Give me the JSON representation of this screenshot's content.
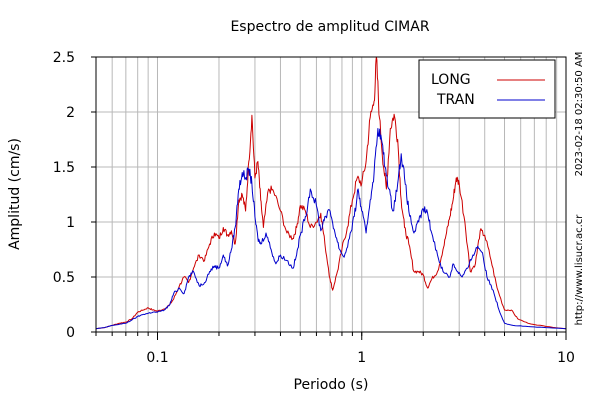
{
  "chart_data": {
    "type": "line",
    "title": "Espectro de amplitud CIMAR",
    "xlabel": "Periodo (s)",
    "ylabel": "Amplitud (cm/s)",
    "x_scale": "log",
    "xlim": [
      0.05,
      10
    ],
    "ylim": [
      0,
      2.5
    ],
    "x_ticks": [
      {
        "value": 0.1,
        "label": "0.1"
      },
      {
        "value": 1,
        "label": "1"
      },
      {
        "value": 10,
        "label": "10"
      }
    ],
    "y_ticks": [
      {
        "value": 0,
        "label": "0"
      },
      {
        "value": 0.5,
        "label": "0.5"
      },
      {
        "value": 1,
        "label": "1"
      },
      {
        "value": 1.5,
        "label": "1.5"
      },
      {
        "value": 2,
        "label": "2"
      },
      {
        "value": 2.5,
        "label": "2.5"
      }
    ],
    "grid": true,
    "legend_position": "top-right",
    "timestamp_label": "2023-02-18 02:30:50 AM",
    "url_label": "http://www.lisucr.ac.cr",
    "series": [
      {
        "name": "LONG",
        "color": "#cc0000",
        "points": [
          [
            0.05,
            0.03
          ],
          [
            0.055,
            0.04
          ],
          [
            0.06,
            0.06
          ],
          [
            0.065,
            0.08
          ],
          [
            0.07,
            0.09
          ],
          [
            0.075,
            0.12
          ],
          [
            0.08,
            0.18
          ],
          [
            0.085,
            0.2
          ],
          [
            0.09,
            0.22
          ],
          [
            0.095,
            0.2
          ],
          [
            0.1,
            0.19
          ],
          [
            0.108,
            0.21
          ],
          [
            0.115,
            0.25
          ],
          [
            0.12,
            0.3
          ],
          [
            0.128,
            0.42
          ],
          [
            0.135,
            0.5
          ],
          [
            0.142,
            0.45
          ],
          [
            0.15,
            0.58
          ],
          [
            0.16,
            0.7
          ],
          [
            0.17,
            0.65
          ],
          [
            0.18,
            0.8
          ],
          [
            0.19,
            0.9
          ],
          [
            0.2,
            0.85
          ],
          [
            0.21,
            0.95
          ],
          [
            0.22,
            0.88
          ],
          [
            0.23,
            0.92
          ],
          [
            0.24,
            0.8
          ],
          [
            0.25,
            1.2
          ],
          [
            0.26,
            1.25
          ],
          [
            0.27,
            1.1
          ],
          [
            0.28,
            1.55
          ],
          [
            0.29,
            1.97
          ],
          [
            0.3,
            1.4
          ],
          [
            0.31,
            1.55
          ],
          [
            0.32,
            1.2
          ],
          [
            0.33,
            0.95
          ],
          [
            0.35,
            1.3
          ],
          [
            0.37,
            1.28
          ],
          [
            0.4,
            1.1
          ],
          [
            0.43,
            0.9
          ],
          [
            0.46,
            0.85
          ],
          [
            0.48,
            0.95
          ],
          [
            0.5,
            1.15
          ],
          [
            0.53,
            1.1
          ],
          [
            0.56,
            0.95
          ],
          [
            0.6,
            1.0
          ],
          [
            0.63,
            1.08
          ],
          [
            0.66,
            0.8
          ],
          [
            0.7,
            0.48
          ],
          [
            0.72,
            0.38
          ],
          [
            0.76,
            0.55
          ],
          [
            0.8,
            0.75
          ],
          [
            0.85,
            0.95
          ],
          [
            0.9,
            1.2
          ],
          [
            0.95,
            1.4
          ],
          [
            1.0,
            1.35
          ],
          [
            1.05,
            1.55
          ],
          [
            1.1,
            1.95
          ],
          [
            1.15,
            2.1
          ],
          [
            1.18,
            2.5
          ],
          [
            1.22,
            1.95
          ],
          [
            1.28,
            1.5
          ],
          [
            1.32,
            1.3
          ],
          [
            1.38,
            1.85
          ],
          [
            1.44,
            1.98
          ],
          [
            1.5,
            1.75
          ],
          [
            1.56,
            1.2
          ],
          [
            1.62,
            0.95
          ],
          [
            1.7,
            0.8
          ],
          [
            1.8,
            0.55
          ],
          [
            1.9,
            0.55
          ],
          [
            2.0,
            0.52
          ],
          [
            2.1,
            0.4
          ],
          [
            2.2,
            0.48
          ],
          [
            2.35,
            0.55
          ],
          [
            2.5,
            0.75
          ],
          [
            2.6,
            0.9
          ],
          [
            2.7,
            1.05
          ],
          [
            2.8,
            1.2
          ],
          [
            2.9,
            1.4
          ],
          [
            3.0,
            1.35
          ],
          [
            3.2,
            1.0
          ],
          [
            3.4,
            0.55
          ],
          [
            3.6,
            0.62
          ],
          [
            3.8,
            0.92
          ],
          [
            4.0,
            0.88
          ],
          [
            4.3,
            0.65
          ],
          [
            4.6,
            0.4
          ],
          [
            5.0,
            0.2
          ],
          [
            5.4,
            0.2
          ],
          [
            5.8,
            0.12
          ],
          [
            6.5,
            0.08
          ],
          [
            8.0,
            0.05
          ],
          [
            10.0,
            0.03
          ]
        ]
      },
      {
        "name": "TRAN",
        "color": "#0000cc",
        "points": [
          [
            0.05,
            0.03
          ],
          [
            0.055,
            0.04
          ],
          [
            0.06,
            0.06
          ],
          [
            0.065,
            0.07
          ],
          [
            0.07,
            0.08
          ],
          [
            0.075,
            0.11
          ],
          [
            0.08,
            0.14
          ],
          [
            0.085,
            0.16
          ],
          [
            0.09,
            0.17
          ],
          [
            0.095,
            0.18
          ],
          [
            0.1,
            0.18
          ],
          [
            0.108,
            0.2
          ],
          [
            0.115,
            0.25
          ],
          [
            0.12,
            0.35
          ],
          [
            0.128,
            0.4
          ],
          [
            0.135,
            0.35
          ],
          [
            0.142,
            0.5
          ],
          [
            0.15,
            0.55
          ],
          [
            0.16,
            0.42
          ],
          [
            0.17,
            0.45
          ],
          [
            0.18,
            0.55
          ],
          [
            0.19,
            0.6
          ],
          [
            0.2,
            0.58
          ],
          [
            0.21,
            0.7
          ],
          [
            0.22,
            0.6
          ],
          [
            0.23,
            0.75
          ],
          [
            0.24,
            0.95
          ],
          [
            0.25,
            1.3
          ],
          [
            0.26,
            1.45
          ],
          [
            0.27,
            1.4
          ],
          [
            0.28,
            1.48
          ],
          [
            0.29,
            1.35
          ],
          [
            0.3,
            1.05
          ],
          [
            0.31,
            0.85
          ],
          [
            0.32,
            0.8
          ],
          [
            0.34,
            0.9
          ],
          [
            0.36,
            0.75
          ],
          [
            0.38,
            0.62
          ],
          [
            0.4,
            0.7
          ],
          [
            0.43,
            0.65
          ],
          [
            0.46,
            0.58
          ],
          [
            0.48,
            0.7
          ],
          [
            0.5,
            0.88
          ],
          [
            0.53,
            1.05
          ],
          [
            0.56,
            1.3
          ],
          [
            0.6,
            1.15
          ],
          [
            0.63,
            0.92
          ],
          [
            0.66,
            1.05
          ],
          [
            0.7,
            1.1
          ],
          [
            0.74,
            0.9
          ],
          [
            0.78,
            0.75
          ],
          [
            0.82,
            0.68
          ],
          [
            0.87,
            0.85
          ],
          [
            0.92,
            1.05
          ],
          [
            0.96,
            1.3
          ],
          [
            1.0,
            1.1
          ],
          [
            1.05,
            0.9
          ],
          [
            1.1,
            1.2
          ],
          [
            1.15,
            1.45
          ],
          [
            1.2,
            1.85
          ],
          [
            1.25,
            1.75
          ],
          [
            1.3,
            1.5
          ],
          [
            1.36,
            1.3
          ],
          [
            1.42,
            1.1
          ],
          [
            1.5,
            1.35
          ],
          [
            1.56,
            1.62
          ],
          [
            1.62,
            1.4
          ],
          [
            1.7,
            1.1
          ],
          [
            1.8,
            0.9
          ],
          [
            1.9,
            1.0
          ],
          [
            2.0,
            1.12
          ],
          [
            2.1,
            1.08
          ],
          [
            2.2,
            0.9
          ],
          [
            2.35,
            0.7
          ],
          [
            2.5,
            0.55
          ],
          [
            2.7,
            0.5
          ],
          [
            2.8,
            0.62
          ],
          [
            2.95,
            0.55
          ],
          [
            3.1,
            0.5
          ],
          [
            3.3,
            0.58
          ],
          [
            3.5,
            0.7
          ],
          [
            3.7,
            0.78
          ],
          [
            3.9,
            0.72
          ],
          [
            4.1,
            0.5
          ],
          [
            4.4,
            0.38
          ],
          [
            4.7,
            0.2
          ],
          [
            5.0,
            0.08
          ],
          [
            5.5,
            0.06
          ],
          [
            6.5,
            0.05
          ],
          [
            8.0,
            0.04
          ],
          [
            10.0,
            0.03
          ]
        ]
      }
    ]
  }
}
